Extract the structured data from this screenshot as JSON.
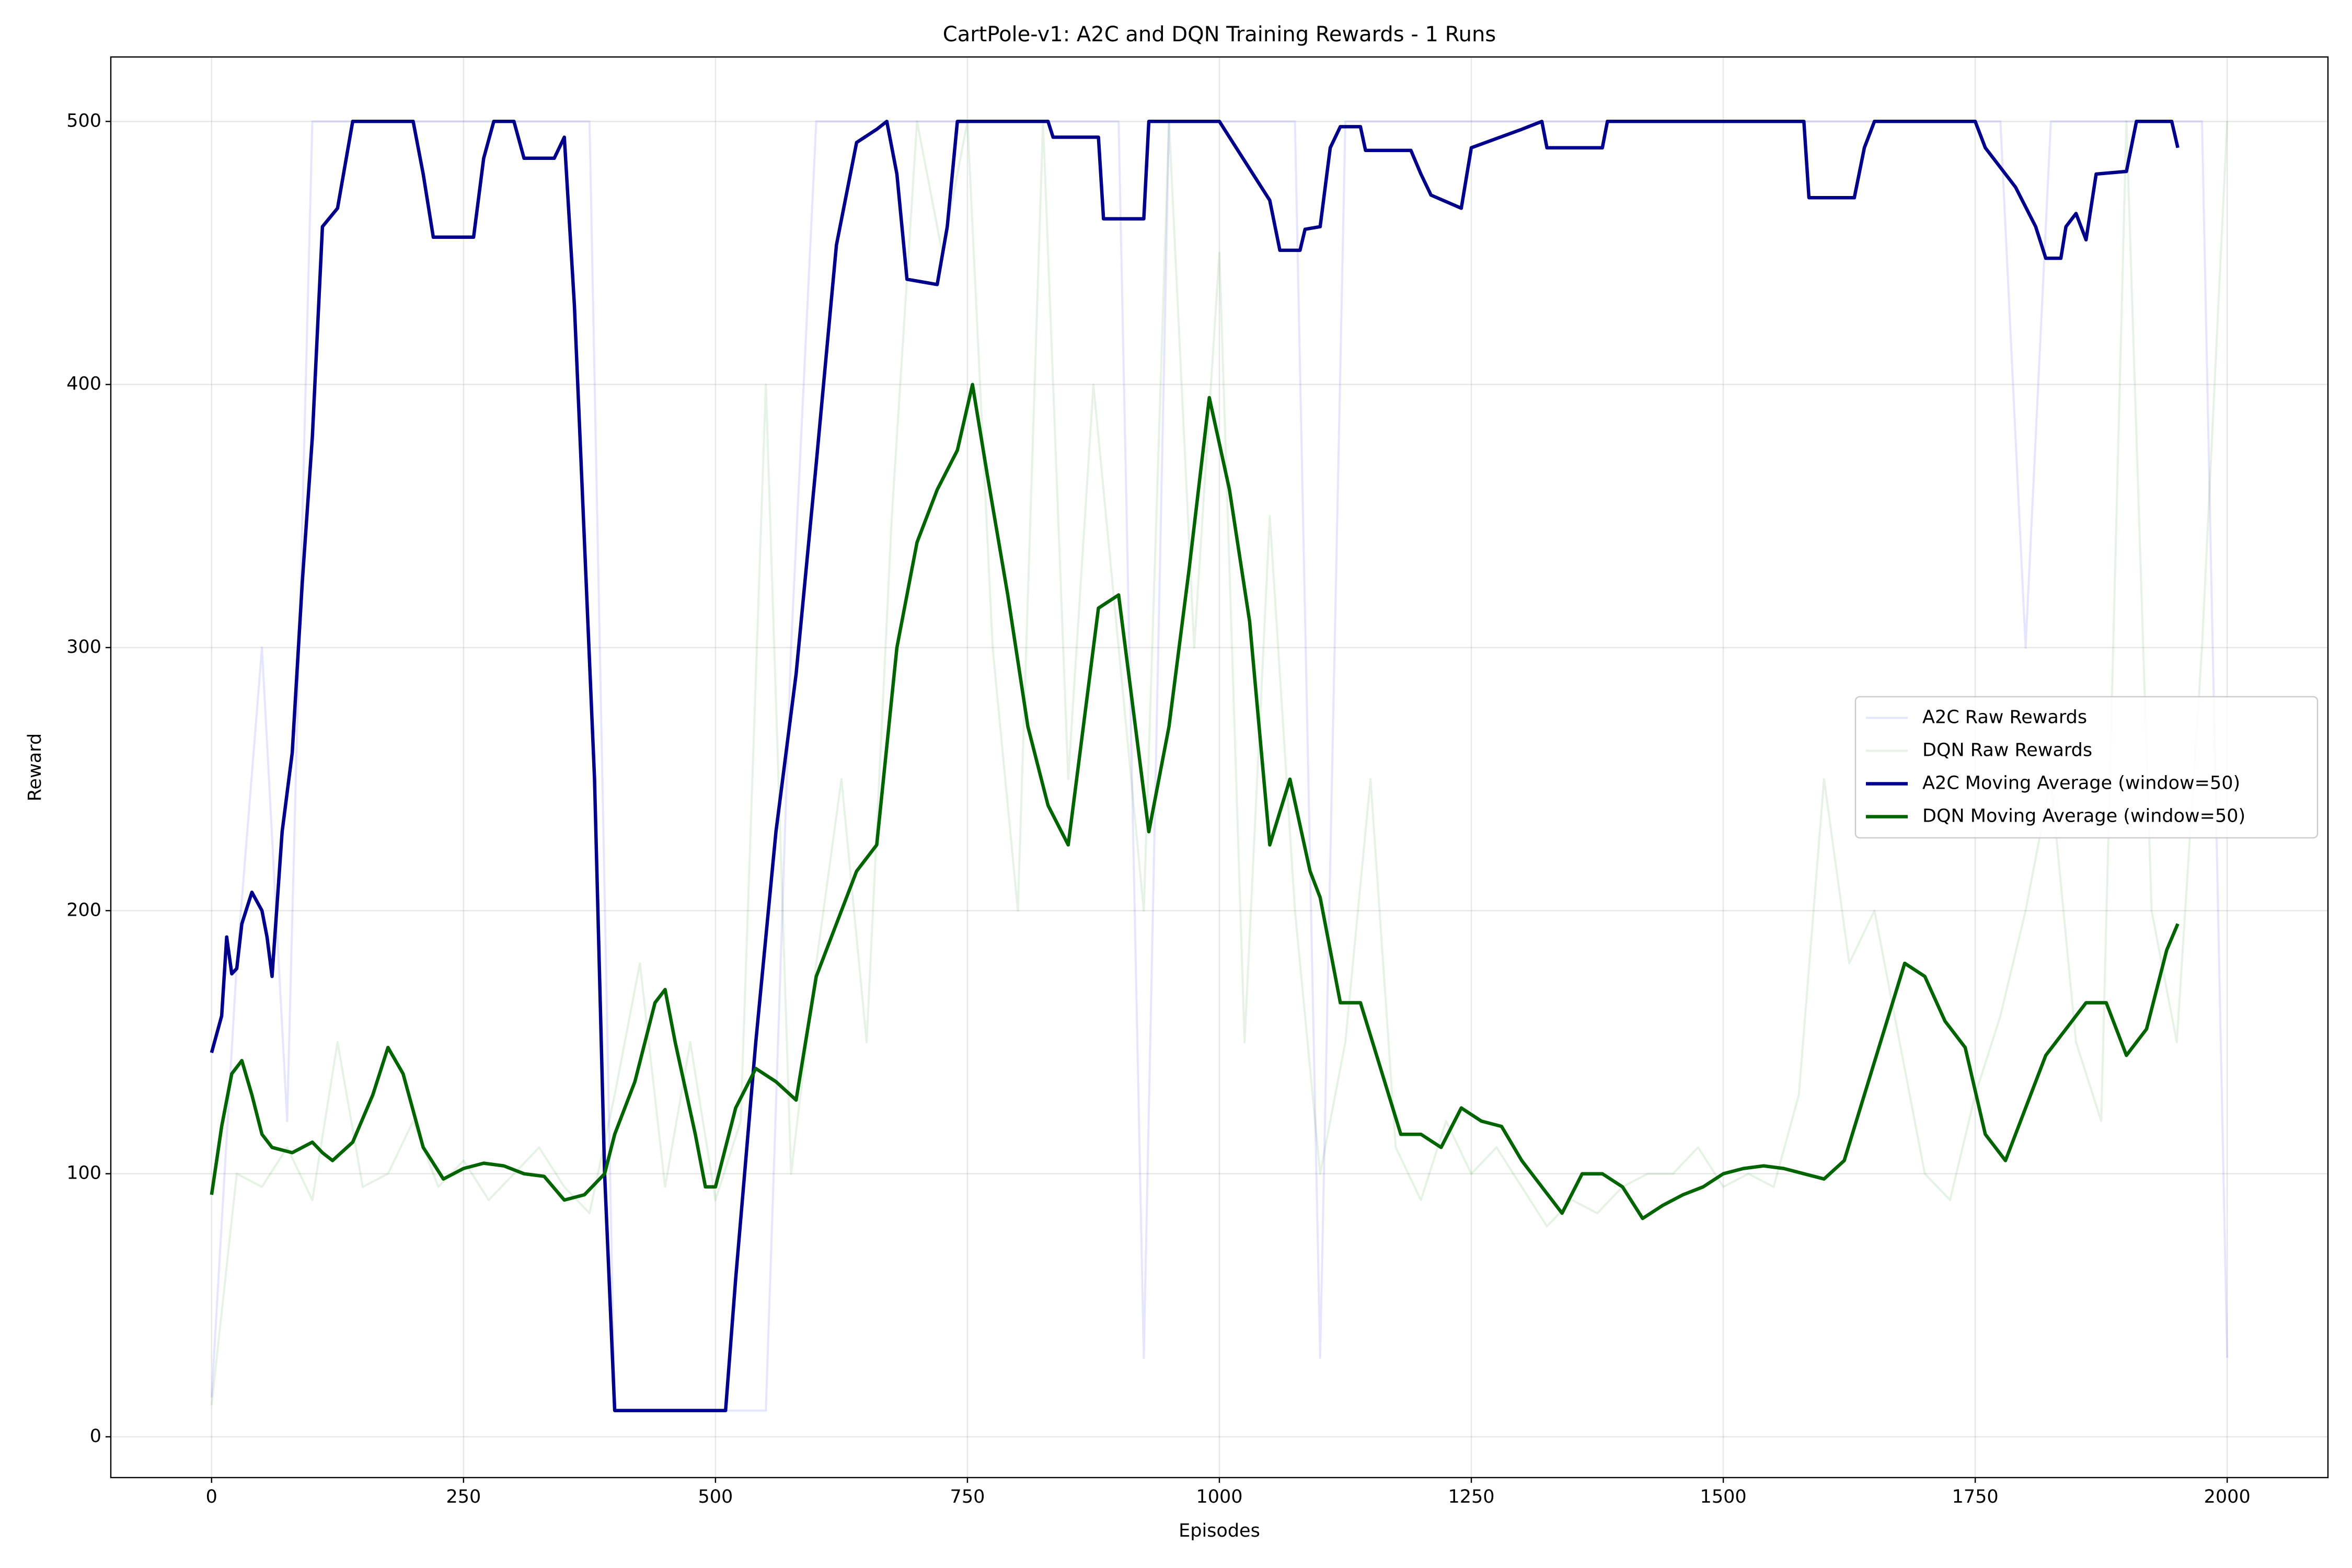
{
  "chart_data": {
    "type": "line",
    "title": "CartPole-v1: A2C and DQN Training Rewards - 1 Runs",
    "xlabel": "Episodes",
    "ylabel": "Reward",
    "xlim": [
      -100,
      2100
    ],
    "ylim": [
      -15.5,
      524.5
    ],
    "xticks": [
      0,
      250,
      500,
      750,
      1000,
      1250,
      1500,
      1750,
      2000
    ],
    "yticks": [
      0,
      100,
      200,
      300,
      400,
      500
    ],
    "grid": true,
    "legend": "center right",
    "series": [
      {
        "name": "A2C Raw Rewards",
        "color": "#0000ff",
        "alpha": 0.1,
        "x": [
          0,
          25,
          50,
          75,
          100,
          125,
          150,
          175,
          200,
          225,
          250,
          275,
          300,
          325,
          350,
          375,
          400,
          425,
          450,
          475,
          500,
          525,
          550,
          575,
          600,
          625,
          650,
          675,
          700,
          725,
          750,
          775,
          800,
          825,
          850,
          875,
          900,
          925,
          950,
          975,
          1000,
          1025,
          1050,
          1075,
          1100,
          1125,
          1150,
          1175,
          1200,
          1225,
          1250,
          1275,
          1300,
          1325,
          1350,
          1375,
          1400,
          1425,
          1450,
          1475,
          1500,
          1525,
          1550,
          1575,
          1600,
          1625,
          1650,
          1675,
          1700,
          1725,
          1750,
          1775,
          1800,
          1825,
          1850,
          1875,
          1900,
          1925,
          1950,
          1975,
          2000
        ],
        "values": [
          15,
          180,
          300,
          120,
          500,
          500,
          500,
          500,
          500,
          500,
          500,
          500,
          500,
          500,
          500,
          500,
          10,
          10,
          10,
          10,
          10,
          10,
          10,
          300,
          500,
          500,
          500,
          500,
          500,
          500,
          500,
          500,
          500,
          500,
          500,
          500,
          500,
          30,
          500,
          500,
          500,
          500,
          500,
          500,
          30,
          500,
          500,
          500,
          500,
          500,
          500,
          500,
          500,
          500,
          500,
          500,
          500,
          500,
          500,
          500,
          500,
          500,
          500,
          500,
          500,
          500,
          500,
          500,
          500,
          500,
          500,
          500,
          300,
          500,
          500,
          500,
          500,
          500,
          500,
          500,
          30
        ]
      },
      {
        "name": "DQN Raw Rewards",
        "color": "#008000",
        "alpha": 0.1,
        "x": [
          0,
          25,
          50,
          75,
          100,
          125,
          150,
          175,
          200,
          225,
          250,
          275,
          300,
          325,
          350,
          375,
          400,
          425,
          450,
          475,
          500,
          525,
          550,
          575,
          600,
          625,
          650,
          675,
          700,
          725,
          750,
          775,
          800,
          825,
          850,
          875,
          900,
          925,
          950,
          975,
          1000,
          1025,
          1050,
          1075,
          1100,
          1125,
          1150,
          1175,
          1200,
          1225,
          1250,
          1275,
          1300,
          1325,
          1350,
          1375,
          1400,
          1425,
          1450,
          1475,
          1500,
          1525,
          1550,
          1575,
          1600,
          1625,
          1650,
          1675,
          1700,
          1725,
          1750,
          1775,
          1800,
          1825,
          1850,
          1875,
          1900,
          1925,
          1950,
          1975,
          2000
        ],
        "values": [
          12,
          100,
          95,
          110,
          90,
          150,
          95,
          100,
          120,
          95,
          105,
          90,
          100,
          110,
          95,
          85,
          130,
          180,
          95,
          150,
          90,
          120,
          400,
          100,
          180,
          250,
          150,
          350,
          500,
          450,
          500,
          300,
          200,
          500,
          250,
          400,
          300,
          200,
          500,
          300,
          450,
          150,
          350,
          200,
          100,
          150,
          250,
          110,
          90,
          120,
          100,
          110,
          95,
          80,
          90,
          85,
          95,
          100,
          100,
          110,
          95,
          100,
          95,
          130,
          250,
          180,
          200,
          150,
          100,
          90,
          130,
          160,
          200,
          250,
          150,
          120,
          500,
          200,
          150,
          300,
          500
        ]
      },
      {
        "name": "A2C Moving Average (window=50)",
        "color": "#00008b",
        "x": [
          0,
          10,
          15,
          20,
          25,
          30,
          40,
          50,
          55,
          60,
          70,
          80,
          90,
          100,
          110,
          125,
          140,
          200,
          210,
          220,
          260,
          270,
          280,
          300,
          310,
          340,
          350,
          360,
          380,
          390,
          400,
          500,
          510,
          520,
          540,
          560,
          580,
          600,
          620,
          640,
          660,
          670,
          680,
          690,
          720,
          730,
          740,
          830,
          835,
          880,
          885,
          925,
          930,
          1000,
          1050,
          1060,
          1080,
          1085,
          1100,
          1110,
          1120,
          1140,
          1145,
          1190,
          1200,
          1210,
          1240,
          1250,
          1300,
          1320,
          1325,
          1380,
          1385,
          1580,
          1585,
          1630,
          1640,
          1650,
          1750,
          1760,
          1790,
          1810,
          1820,
          1835,
          1840,
          1850,
          1860,
          1870,
          1900,
          1910,
          1945,
          1951
        ],
        "values": [
          146,
          160,
          190,
          176,
          178,
          195,
          207,
          200,
          190,
          175,
          230,
          260,
          325,
          380,
          460,
          467,
          500,
          500,
          480,
          456,
          456,
          486,
          500,
          500,
          486,
          486,
          494,
          430,
          250,
          100,
          10,
          10,
          10,
          60,
          150,
          230,
          290,
          370,
          453,
          492,
          497,
          500,
          480,
          440,
          438,
          460,
          500,
          500,
          494,
          494,
          463,
          463,
          500,
          500,
          470,
          451,
          451,
          459,
          460,
          490,
          498,
          498,
          489,
          489,
          480,
          472,
          467,
          490,
          497,
          500,
          490,
          490,
          500,
          500,
          471,
          471,
          490,
          500,
          500,
          490,
          475,
          460,
          448,
          448,
          460,
          465,
          455,
          480,
          481,
          500,
          500,
          490
        ]
      },
      {
        "name": "DQN Moving Average (window=50)",
        "color": "#006400",
        "x": [
          0,
          5,
          10,
          20,
          30,
          40,
          50,
          60,
          80,
          100,
          110,
          120,
          140,
          160,
          175,
          190,
          210,
          230,
          250,
          270,
          290,
          310,
          330,
          350,
          370,
          390,
          400,
          420,
          440,
          450,
          460,
          480,
          490,
          500,
          520,
          540,
          560,
          580,
          600,
          620,
          640,
          660,
          680,
          700,
          720,
          740,
          755,
          770,
          790,
          810,
          830,
          850,
          860,
          880,
          900,
          920,
          930,
          950,
          970,
          990,
          1010,
          1030,
          1050,
          1070,
          1090,
          1100,
          1120,
          1140,
          1160,
          1180,
          1200,
          1220,
          1240,
          1260,
          1280,
          1300,
          1320,
          1340,
          1360,
          1380,
          1400,
          1420,
          1440,
          1460,
          1480,
          1500,
          1520,
          1540,
          1560,
          1580,
          1600,
          1620,
          1640,
          1660,
          1680,
          1700,
          1720,
          1740,
          1760,
          1780,
          1800,
          1820,
          1840,
          1860,
          1880,
          1900,
          1920,
          1940,
          1951
        ],
        "values": [
          92,
          105,
          118,
          138,
          143,
          130,
          115,
          110,
          108,
          112,
          108,
          105,
          112,
          130,
          148,
          138,
          110,
          98,
          102,
          104,
          103,
          100,
          99,
          90,
          92,
          100,
          115,
          135,
          165,
          170,
          150,
          115,
          95,
          95,
          125,
          140,
          135,
          128,
          175,
          195,
          215,
          225,
          300,
          340,
          360,
          375,
          400,
          365,
          320,
          270,
          240,
          225,
          255,
          315,
          320,
          260,
          230,
          270,
          330,
          395,
          360,
          310,
          225,
          250,
          215,
          205,
          165,
          165,
          140,
          115,
          115,
          110,
          125,
          120,
          118,
          105,
          95,
          85,
          100,
          100,
          95,
          83,
          88,
          92,
          95,
          100,
          102,
          103,
          102,
          100,
          98,
          105,
          130,
          155,
          180,
          175,
          158,
          148,
          115,
          105,
          125,
          145,
          155,
          165,
          165,
          145,
          155,
          185,
          195
        ]
      }
    ]
  }
}
